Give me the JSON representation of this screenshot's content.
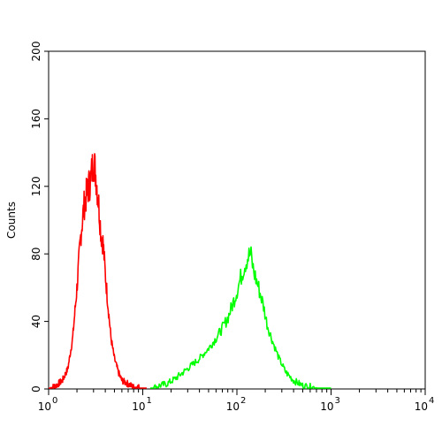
{
  "chart_data": {
    "type": "line",
    "title": "",
    "xlabel": "",
    "ylabel": "Counts",
    "x_scale": "log",
    "xlim": [
      1,
      10000
    ],
    "ylim": [
      0,
      200
    ],
    "y_ticks": [
      0,
      40,
      80,
      120,
      160,
      200
    ],
    "x_ticks": [
      {
        "base": "10",
        "exp": "0",
        "value": 1
      },
      {
        "base": "10",
        "exp": "1",
        "value": 10
      },
      {
        "base": "10",
        "exp": "2",
        "value": 100
      },
      {
        "base": "10",
        "exp": "3",
        "value": 1000
      },
      {
        "base": "10",
        "exp": "4",
        "value": 10000
      }
    ],
    "grid": false,
    "legend": "none",
    "series": [
      {
        "color": "#ff0000",
        "x": [
          1.0,
          1.2,
          1.4,
          1.6,
          1.8,
          2.0,
          2.2,
          2.4,
          2.6,
          2.8,
          3.0,
          3.2,
          3.4,
          3.6,
          3.8,
          4.0,
          4.3,
          4.6,
          5.0,
          5.5,
          6.0,
          7.0,
          8.0,
          9.0,
          10.0,
          11.0
        ],
        "y": [
          0,
          2,
          5,
          12,
          30,
          60,
          92,
          110,
          118,
          124,
          136,
          125,
          110,
          92,
          86,
          68,
          48,
          30,
          18,
          10,
          5,
          3,
          1,
          1,
          0,
          0
        ]
      },
      {
        "color": "#00ff00",
        "x": [
          12,
          15,
          18,
          22,
          27,
          33,
          40,
          50,
          60,
          70,
          80,
          90,
          100,
          110,
          120,
          130,
          140,
          150,
          170,
          190,
          210,
          240,
          280,
          330,
          400,
          500,
          650,
          800,
          1000
        ],
        "y": [
          0,
          2,
          3,
          6,
          10,
          14,
          18,
          24,
          30,
          36,
          42,
          50,
          58,
          66,
          73,
          78,
          80,
          70,
          60,
          50,
          38,
          28,
          18,
          10,
          5,
          2,
          1,
          0,
          0
        ]
      }
    ]
  }
}
